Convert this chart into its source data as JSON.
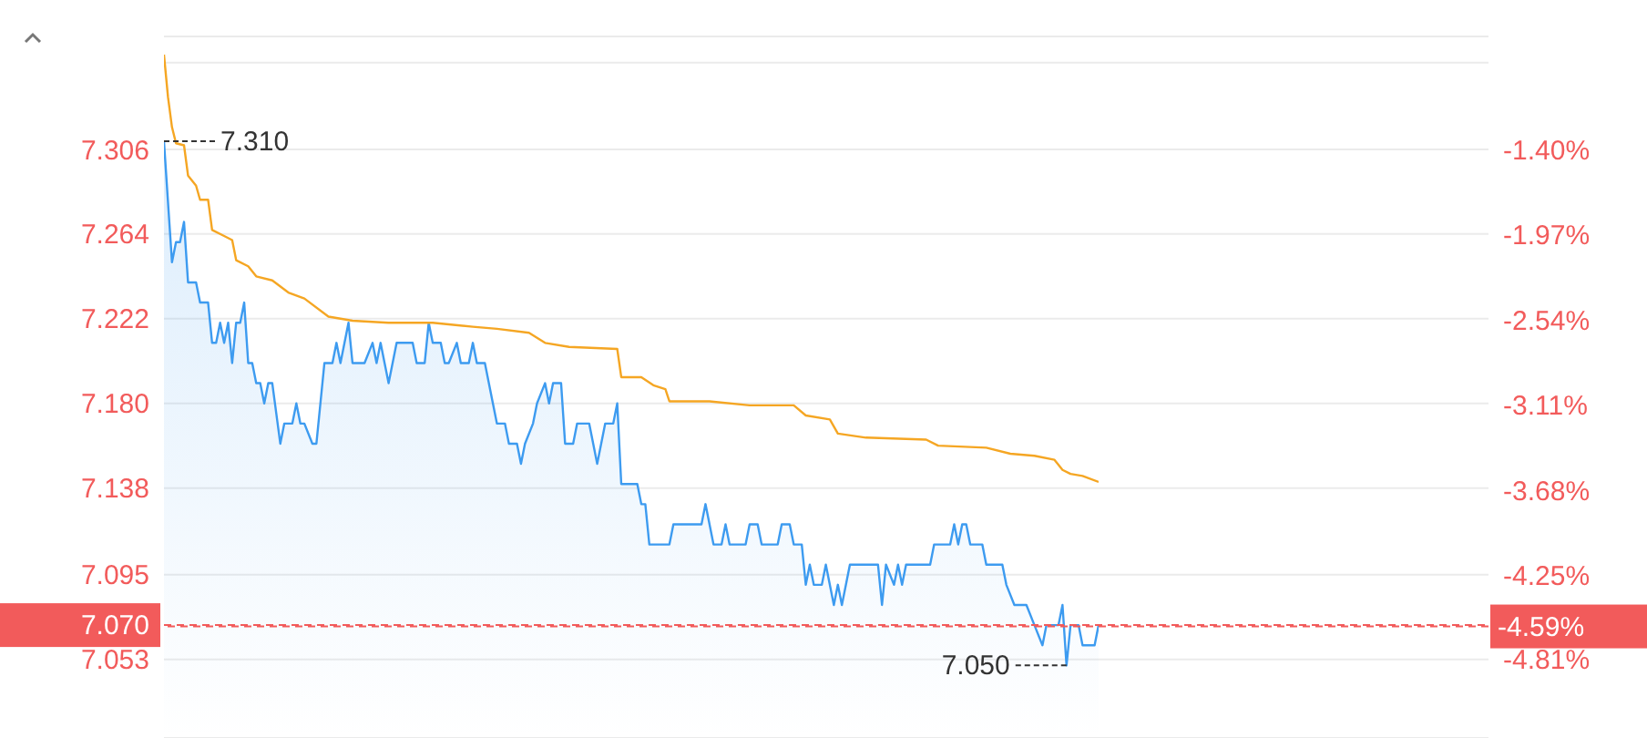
{
  "chart_data": {
    "type": "line",
    "grid": "y",
    "categories": [
      null,
      null,
      null,
      null,
      null,
      null,
      null,
      null,
      null,
      null,
      null,
      null,
      null,
      null,
      null,
      null,
      null,
      null,
      null,
      null,
      null,
      null,
      null,
      null,
      null,
      null,
      null,
      null,
      null,
      null,
      null,
      null,
      null,
      null,
      null,
      null,
      null,
      null,
      null,
      null,
      null,
      null,
      null,
      null,
      null,
      null,
      null,
      null,
      null,
      null,
      null,
      null,
      null,
      null,
      null,
      null,
      null,
      null,
      null,
      null,
      null,
      null,
      null,
      null,
      null,
      null,
      null,
      null,
      null,
      null,
      null,
      null,
      null,
      null,
      null,
      null,
      null,
      null,
      null,
      null,
      null,
      null,
      null,
      null,
      null,
      null,
      null,
      null,
      null,
      null,
      null,
      null,
      null,
      null,
      null,
      null,
      null,
      null,
      null,
      null,
      null,
      null,
      null,
      null,
      null,
      null,
      null,
      null,
      null,
      null,
      null,
      null,
      null,
      null,
      null,
      null,
      null,
      null,
      null,
      null,
      null,
      null,
      null,
      null,
      null,
      null,
      null,
      null,
      null,
      null,
      null,
      null,
      null,
      null,
      null,
      null,
      null,
      null,
      null,
      null,
      null,
      null,
      null,
      null,
      null,
      null,
      null,
      null,
      null,
      null,
      null,
      null,
      null,
      null,
      null,
      null,
      null,
      null,
      null,
      null,
      null,
      null,
      null,
      null,
      null,
      null,
      null,
      null,
      null,
      null,
      null,
      null,
      null,
      null,
      null,
      null,
      null,
      null,
      null,
      null,
      null,
      null,
      null,
      null,
      null,
      null,
      null,
      null,
      null,
      null,
      null,
      null,
      null,
      null,
      null,
      null,
      null,
      null,
      null,
      null,
      null,
      null,
      null,
      null,
      null,
      null,
      null,
      null,
      null,
      null,
      null,
      null,
      null,
      null,
      null,
      null,
      null,
      null,
      null,
      null,
      null,
      null,
      null,
      null,
      null,
      null,
      null,
      null,
      null,
      null,
      null,
      null,
      null,
      null
    ],
    "ylim": [
      7.014,
      7.362
    ],
    "yticks": [
      {
        "value": 7.053,
        "label": "7.053"
      },
      {
        "value": 7.095,
        "label": "7.095"
      },
      {
        "value": 7.138,
        "label": "7.138"
      },
      {
        "value": 7.18,
        "label": "7.180"
      },
      {
        "value": 7.222,
        "label": "7.222"
      },
      {
        "value": 7.264,
        "label": "7.264"
      },
      {
        "value": 7.306,
        "label": "7.306"
      },
      {
        "value": 7.349,
        "label": null
      }
    ],
    "y2lim": [
      -5.336,
      -0.645
    ],
    "y2ticks": [
      {
        "value": -4.81,
        "label": "-4.81%"
      },
      {
        "value": -4.25,
        "label": "-4.25%"
      },
      {
        "value": -3.68,
        "label": "-3.68%"
      },
      {
        "value": -3.11,
        "label": "-3.11%"
      },
      {
        "value": -2.54,
        "label": "-2.54%"
      },
      {
        "value": -1.97,
        "label": "-1.97%"
      },
      {
        "value": -1.4,
        "label": "-1.40%"
      }
    ],
    "series": [
      {
        "type": "area",
        "color": "#3d9bf0",
        "values": [
          7.31,
          null,
          7.25,
          7.26,
          7.26,
          7.27,
          7.24,
          null,
          7.24,
          7.23,
          null,
          7.23,
          7.21,
          7.21,
          7.22,
          7.21,
          7.22,
          7.2,
          7.22,
          7.22,
          7.23,
          7.2,
          7.2,
          7.19,
          7.19,
          7.18,
          7.19,
          7.19,
          null,
          7.16,
          7.17,
          null,
          7.17,
          7.18,
          7.17,
          7.17,
          null,
          7.16,
          7.16,
          7.18,
          7.2,
          null,
          7.2,
          7.21,
          7.2,
          null,
          7.22,
          7.2,
          null,
          null,
          7.2,
          null,
          7.21,
          7.2,
          7.21,
          7.2,
          7.19,
          null,
          7.21,
          null,
          null,
          null,
          7.21,
          7.2,
          null,
          7.2,
          7.22,
          7.21,
          null,
          7.21,
          7.2,
          7.2,
          null,
          7.21,
          7.2,
          null,
          7.2,
          7.21,
          7.2,
          null,
          7.2,
          null,
          7.18,
          7.17,
          null,
          7.17,
          7.16,
          null,
          7.16,
          7.15,
          7.16,
          null,
          7.17,
          7.18,
          null,
          7.19,
          7.18,
          7.19,
          null,
          7.19,
          7.16,
          null,
          7.16,
          7.17,
          null,
          null,
          7.17,
          null,
          7.15,
          null,
          7.17,
          null,
          7.17,
          7.18,
          7.14,
          null,
          null,
          null,
          7.14,
          7.13,
          7.13,
          7.11,
          null,
          null,
          null,
          null,
          7.11,
          7.12,
          null,
          null,
          null,
          null,
          null,
          null,
          7.12,
          7.13,
          null,
          7.11,
          null,
          7.11,
          7.12,
          7.11,
          null,
          null,
          null,
          7.11,
          7.12,
          null,
          7.12,
          7.11,
          null,
          null,
          null,
          7.11,
          7.12,
          null,
          7.12,
          7.11,
          null,
          7.11,
          7.09,
          7.1,
          7.09,
          null,
          7.09,
          7.1,
          null,
          7.08,
          7.09,
          7.08,
          null,
          7.1,
          null,
          null,
          null,
          null,
          null,
          null,
          7.1,
          7.08,
          7.1,
          null,
          7.09,
          7.1,
          7.09,
          7.1,
          null,
          null,
          null,
          null,
          null,
          7.1,
          7.11,
          null,
          null,
          null,
          7.11,
          7.12,
          7.11,
          7.12,
          7.12,
          7.11,
          null,
          null,
          7.11,
          7.1,
          null,
          null,
          null,
          7.1,
          7.09,
          null,
          7.08,
          null,
          null,
          7.08,
          null,
          7.07,
          null,
          7.06,
          7.07,
          null,
          null,
          7.07,
          7.08,
          7.05,
          7.07,
          null,
          7.07,
          7.06,
          null,
          null,
          7.06,
          7.07
        ]
      },
      {
        "color": "#f5a623",
        "values": [
          7.353,
          7.332,
          7.317,
          7.309,
          null,
          7.308,
          7.293,
          null,
          7.288,
          7.281,
          null,
          7.281,
          7.266,
          null,
          null,
          7.263,
          null,
          7.261,
          7.251,
          null,
          null,
          7.248,
          null,
          7.243,
          null,
          null,
          null,
          7.241,
          null,
          null,
          null,
          7.235,
          null,
          null,
          null,
          7.232,
          null,
          null,
          null,
          null,
          null,
          7.223,
          null,
          null,
          null,
          null,
          null,
          7.221,
          null,
          null,
          null,
          null,
          null,
          null,
          null,
          null,
          7.22,
          null,
          null,
          null,
          null,
          null,
          null,
          null,
          null,
          null,
          null,
          7.22,
          null,
          null,
          null,
          null,
          null,
          null,
          null,
          null,
          null,
          7.218,
          null,
          null,
          null,
          null,
          null,
          7.217,
          null,
          null,
          null,
          null,
          null,
          null,
          null,
          7.215,
          null,
          null,
          null,
          7.21,
          null,
          null,
          null,
          null,
          null,
          7.208,
          null,
          null,
          null,
          null,
          null,
          null,
          null,
          null,
          null,
          null,
          null,
          7.207,
          7.193,
          null,
          null,
          null,
          null,
          7.193,
          null,
          null,
          7.189,
          null,
          null,
          7.187,
          7.181,
          null,
          null,
          null,
          null,
          null,
          null,
          null,
          null,
          null,
          7.181,
          null,
          null,
          null,
          null,
          null,
          null,
          null,
          null,
          null,
          7.179,
          null,
          null,
          null,
          null,
          null,
          null,
          null,
          null,
          null,
          null,
          7.179,
          null,
          null,
          7.174,
          null,
          null,
          null,
          null,
          null,
          7.172,
          null,
          7.165,
          null,
          null,
          null,
          null,
          null,
          null,
          7.163,
          null,
          null,
          null,
          null,
          null,
          null,
          null,
          null,
          null,
          null,
          null,
          null,
          null,
          null,
          7.162,
          null,
          null,
          7.159,
          null,
          null,
          null,
          null,
          null,
          null,
          null,
          null,
          null,
          null,
          null,
          7.158,
          null,
          null,
          null,
          null,
          null,
          7.155,
          null,
          null,
          null,
          null,
          null,
          7.154,
          null,
          null,
          null,
          null,
          7.152,
          null,
          7.147,
          null,
          7.145,
          null,
          null,
          7.144,
          null,
          null,
          null,
          7.141
        ]
      }
    ],
    "ref_lines": [
      {
        "axis": "y",
        "value": 7.07,
        "label": "7.070",
        "color": "#f25b5b",
        "line_style": "dashed"
      },
      {
        "axis": "y2",
        "value": -4.59,
        "label": "-4.59%",
        "color": "#f25b5b",
        "line_style": "dashed"
      }
    ],
    "annotations": [
      "7.310",
      "7.050"
    ]
  }
}
